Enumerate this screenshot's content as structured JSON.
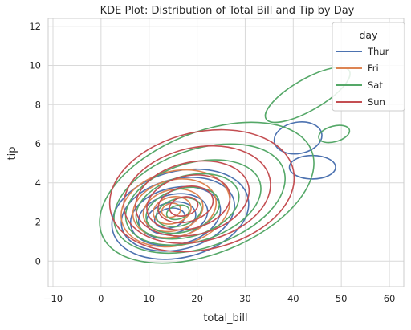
{
  "chart_data": {
    "type": "kde-contour",
    "title": "KDE Plot: Distribution of Total Bill and Tip by Day",
    "xlabel": "total_bill",
    "ylabel": "tip",
    "xlim": [
      -11,
      63
    ],
    "ylim": [
      -1.3,
      12.4
    ],
    "x_ticks": [
      -10,
      0,
      10,
      20,
      30,
      40,
      50,
      60
    ],
    "y_ticks": [
      0,
      2,
      4,
      6,
      8,
      10,
      12
    ],
    "grid": true,
    "legend": {
      "title": "day",
      "placement": "top-right"
    },
    "series": [
      {
        "name": "Thur",
        "color": "#4c72b0",
        "levels": [
          {
            "center": [
              16.5,
              2.4
            ],
            "sx": 14.5,
            "sy": 2.2,
            "angle": -14
          },
          {
            "center": [
              16.0,
              2.4
            ],
            "sx": 12.0,
            "sy": 1.8,
            "angle": -14
          },
          {
            "center": [
              15.5,
              2.3
            ],
            "sx": 9.5,
            "sy": 1.45,
            "angle": -13
          },
          {
            "center": [
              15.0,
              2.3
            ],
            "sx": 7.3,
            "sy": 1.1,
            "angle": -13
          },
          {
            "center": [
              14.6,
              2.2
            ],
            "sx": 5.2,
            "sy": 0.8,
            "angle": -13
          },
          {
            "center": [
              14.3,
              2.2
            ],
            "sx": 3.2,
            "sy": 0.5,
            "angle": -13
          },
          {
            "center": [
              41.0,
              6.3
            ],
            "sx": 5.0,
            "sy": 0.8,
            "angle": -10
          },
          {
            "center": [
              44.0,
              4.8
            ],
            "sx": 4.8,
            "sy": 0.6,
            "angle": 0
          }
        ]
      },
      {
        "name": "Fri",
        "color": "#dd8452",
        "levels": [
          {
            "center": [
              15.5,
              2.7
            ],
            "sx": 11.5,
            "sy": 1.9,
            "angle": -14
          },
          {
            "center": [
              15.3,
              2.7
            ],
            "sx": 8.8,
            "sy": 1.45,
            "angle": -14
          },
          {
            "center": [
              15.0,
              2.6
            ],
            "sx": 6.3,
            "sy": 1.05,
            "angle": -14
          },
          {
            "center": [
              14.8,
              2.6
            ],
            "sx": 4.0,
            "sy": 0.68,
            "angle": -14
          },
          {
            "center": [
              14.6,
              2.6
            ],
            "sx": 2.0,
            "sy": 0.35,
            "angle": -14
          }
        ]
      },
      {
        "name": "Sat",
        "color": "#55a868",
        "levels": [
          {
            "center": [
              22.0,
              3.5
            ],
            "sx": 23.5,
            "sy": 3.1,
            "angle": -22
          },
          {
            "center": [
              20.5,
              3.2
            ],
            "sx": 18.5,
            "sy": 2.5,
            "angle": -19
          },
          {
            "center": [
              19.2,
              3.0
            ],
            "sx": 14.5,
            "sy": 2.0,
            "angle": -17
          },
          {
            "center": [
              18.0,
              2.8
            ],
            "sx": 11.0,
            "sy": 1.55,
            "angle": -16
          },
          {
            "center": [
              17.0,
              2.6
            ],
            "sx": 7.8,
            "sy": 1.1,
            "angle": -15
          },
          {
            "center": [
              16.2,
              2.5
            ],
            "sx": 4.8,
            "sy": 0.7,
            "angle": -15
          },
          {
            "center": [
              16.0,
              2.5
            ],
            "sx": 2.4,
            "sy": 0.35,
            "angle": -15
          },
          {
            "center": [
              43.0,
              8.5
            ],
            "sx": 10.0,
            "sy": 0.8,
            "angle": -30
          },
          {
            "center": [
              48.5,
              6.5
            ],
            "sx": 3.3,
            "sy": 0.4,
            "angle": -15
          }
        ]
      },
      {
        "name": "Sun",
        "color": "#c44e52",
        "levels": [
          {
            "center": [
              21.0,
              3.6
            ],
            "sx": 19.5,
            "sy": 3.0,
            "angle": -13
          },
          {
            "center": [
              20.0,
              3.4
            ],
            "sx": 15.5,
            "sy": 2.4,
            "angle": -13
          },
          {
            "center": [
              19.0,
              3.2
            ],
            "sx": 12.0,
            "sy": 1.85,
            "angle": -13
          },
          {
            "center": [
              18.2,
              3.0
            ],
            "sx": 8.8,
            "sy": 1.35,
            "angle": -13
          },
          {
            "center": [
              17.6,
              2.9
            ],
            "sx": 5.8,
            "sy": 0.9,
            "angle": -13
          },
          {
            "center": [
              17.2,
              2.8
            ],
            "sx": 3.0,
            "sy": 0.48,
            "angle": -13
          }
        ]
      }
    ]
  }
}
